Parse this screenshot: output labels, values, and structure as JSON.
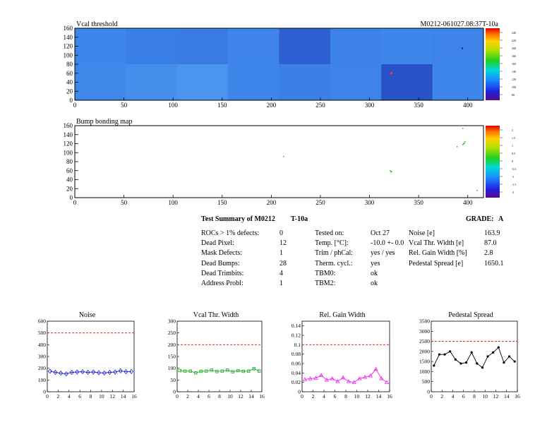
{
  "module_id": "M0212-061027.08:37T-10a",
  "charts": [
    {
      "type": "heatmap",
      "title": "Vcal threshold",
      "xticks": [
        0,
        50,
        100,
        150,
        200,
        250,
        300,
        350,
        400
      ],
      "yticks": [
        0,
        20,
        40,
        60,
        80,
        100,
        120,
        140,
        160
      ],
      "xlim": [
        0,
        416
      ],
      "ylim": [
        0,
        160
      ],
      "zticks": [
        "80",
        "100",
        "120",
        "140",
        "160",
        "180",
        "200",
        "220",
        "240"
      ]
    },
    {
      "type": "heatmap",
      "title": "Bump bonding map",
      "xticks": [
        0,
        50,
        100,
        150,
        200,
        250,
        300,
        350,
        400
      ],
      "yticks": [
        0,
        20,
        40,
        60,
        80,
        100,
        120,
        140,
        160
      ],
      "xlim": [
        0,
        416
      ],
      "ylim": [
        0,
        160
      ],
      "zticks": [
        "-2",
        "-1.5",
        "-1",
        "-0.5",
        "0",
        "0.5",
        "1",
        "1.5",
        "2"
      ]
    }
  ],
  "summary": {
    "heading": "Test Summary of M0212",
    "tag": "T-10a",
    "grade_label": "GRADE:",
    "grade": "A",
    "col1": [
      {
        "label": "ROCs > 1% defects:",
        "value": "0"
      },
      {
        "label": "Dead Pixel:",
        "value": "12"
      },
      {
        "label": "Mask Defects:",
        "value": "1"
      },
      {
        "label": "Dead Bumps:",
        "value": "28"
      },
      {
        "label": "Dead Trimbits:",
        "value": "4"
      },
      {
        "label": "Address Probl:",
        "value": "1"
      }
    ],
    "col2": [
      {
        "label": "Tested on:",
        "value": "Oct 27"
      },
      {
        "label": "Temp. [°C]:",
        "value": "-10.0 +- 0.0"
      },
      {
        "label": "Trim / phCal:",
        "value": "yes / yes"
      },
      {
        "label": "Therm. cycl.:",
        "value": "yes"
      },
      {
        "label": "TBM0:",
        "value": "ok"
      },
      {
        "label": "TBM2:",
        "value": "ok"
      }
    ],
    "col3": [
      {
        "label": "Noise [e]",
        "value": "163.9"
      },
      {
        "label": "Vcal Thr. Width [e]",
        "value": "87.0"
      },
      {
        "label": "Rel. Gain Width [%]",
        "value": "2.8"
      },
      {
        "label": "Pedestal Spread [e]",
        "value": "1650.1"
      }
    ]
  },
  "chart_data": [
    {
      "type": "line",
      "title": "Noise",
      "x": [
        0,
        1,
        2,
        3,
        4,
        5,
        6,
        7,
        8,
        9,
        10,
        11,
        12,
        13,
        14,
        15
      ],
      "values": [
        175,
        165,
        158,
        152,
        165,
        168,
        170,
        165,
        168,
        162,
        160,
        165,
        168,
        178,
        170,
        172
      ],
      "ylim": [
        0,
        600
      ],
      "xlim": [
        0,
        16
      ],
      "yticks": [
        0,
        100,
        200,
        300,
        400,
        500,
        600
      ],
      "threshold": 500,
      "color": "#2222cc"
    },
    {
      "type": "line",
      "title": "Vcal Thr. Width",
      "x": [
        0,
        1,
        2,
        3,
        4,
        5,
        6,
        7,
        8,
        9,
        10,
        11,
        12,
        13,
        14,
        15
      ],
      "values": [
        90,
        88,
        88,
        80,
        87,
        88,
        92,
        86,
        88,
        92,
        85,
        90,
        87,
        88,
        98,
        88
      ],
      "ylim": [
        0,
        300
      ],
      "xlim": [
        0,
        16
      ],
      "yticks": [
        0,
        50,
        100,
        150,
        200,
        250,
        300
      ],
      "threshold": 200,
      "color": "#22aa22"
    },
    {
      "type": "line",
      "title": "Rel. Gain Width",
      "x": [
        0,
        1,
        2,
        3,
        4,
        5,
        6,
        7,
        8,
        9,
        10,
        11,
        12,
        13,
        14,
        15
      ],
      "values": [
        0.026,
        0.028,
        0.029,
        0.035,
        0.025,
        0.028,
        0.022,
        0.03,
        0.022,
        0.02,
        0.028,
        0.031,
        0.034,
        0.048,
        0.028,
        0.02
      ],
      "ylim": [
        0,
        0.15
      ],
      "xlim": [
        0,
        16
      ],
      "yticks": [
        0,
        0.02,
        0.04,
        0.06,
        0.08,
        0.1,
        0.12,
        0.14
      ],
      "threshold": 0.1,
      "color": "#ee22ee"
    },
    {
      "type": "line",
      "title": "Pedestal Spread",
      "x": [
        0,
        1,
        2,
        3,
        4,
        5,
        6,
        7,
        8,
        9,
        10,
        11,
        12,
        13,
        14,
        15
      ],
      "values": [
        1300,
        1850,
        1850,
        2000,
        1600,
        1400,
        1450,
        1950,
        1400,
        1200,
        1750,
        1950,
        2200,
        1450,
        1750,
        1500
      ],
      "ylim": [
        0,
        3500
      ],
      "xlim": [
        0,
        16
      ],
      "yticks": [
        0,
        500,
        1000,
        1500,
        2000,
        2500,
        3000,
        3500
      ],
      "threshold": 2500,
      "color": "#000000"
    }
  ]
}
